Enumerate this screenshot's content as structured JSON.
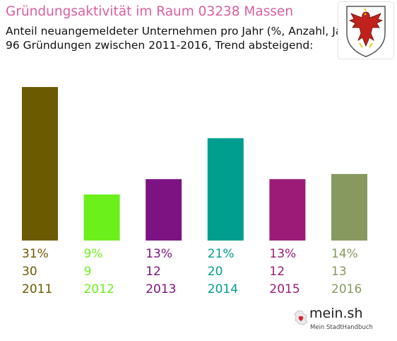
{
  "header": {
    "title": "Gründungsaktivität im Raum 03238 Massen",
    "subtitle_line1": "Anteil neuangemeldeter Unternehmen pro Jahr (%, Anzahl, Jahr)",
    "subtitle_line2": "96 Gründungen zwischen 2011-2016, Trend absteigend:"
  },
  "crest": {
    "icon": "brandenburg-eagle-crest-icon"
  },
  "brand": {
    "name": "mein.sh",
    "tagline": "Mein StadtHandbuch",
    "icon": "germany-map-heart-icon"
  },
  "chart_data": {
    "type": "bar",
    "categories": [
      "2011",
      "2012",
      "2013",
      "2014",
      "2015",
      "2016"
    ],
    "values": [
      30,
      9,
      12,
      20,
      12,
      13
    ],
    "percent_labels": [
      "31%",
      "9%",
      "13%",
      "21%",
      "13%",
      "14%"
    ],
    "colors": [
      "#6b5a00",
      "#6cf01c",
      "#7d1383",
      "#009e8e",
      "#9b1b77",
      "#86995f"
    ],
    "total": 96,
    "ylim": [
      0,
      30
    ],
    "grid": false,
    "legend": "none"
  }
}
